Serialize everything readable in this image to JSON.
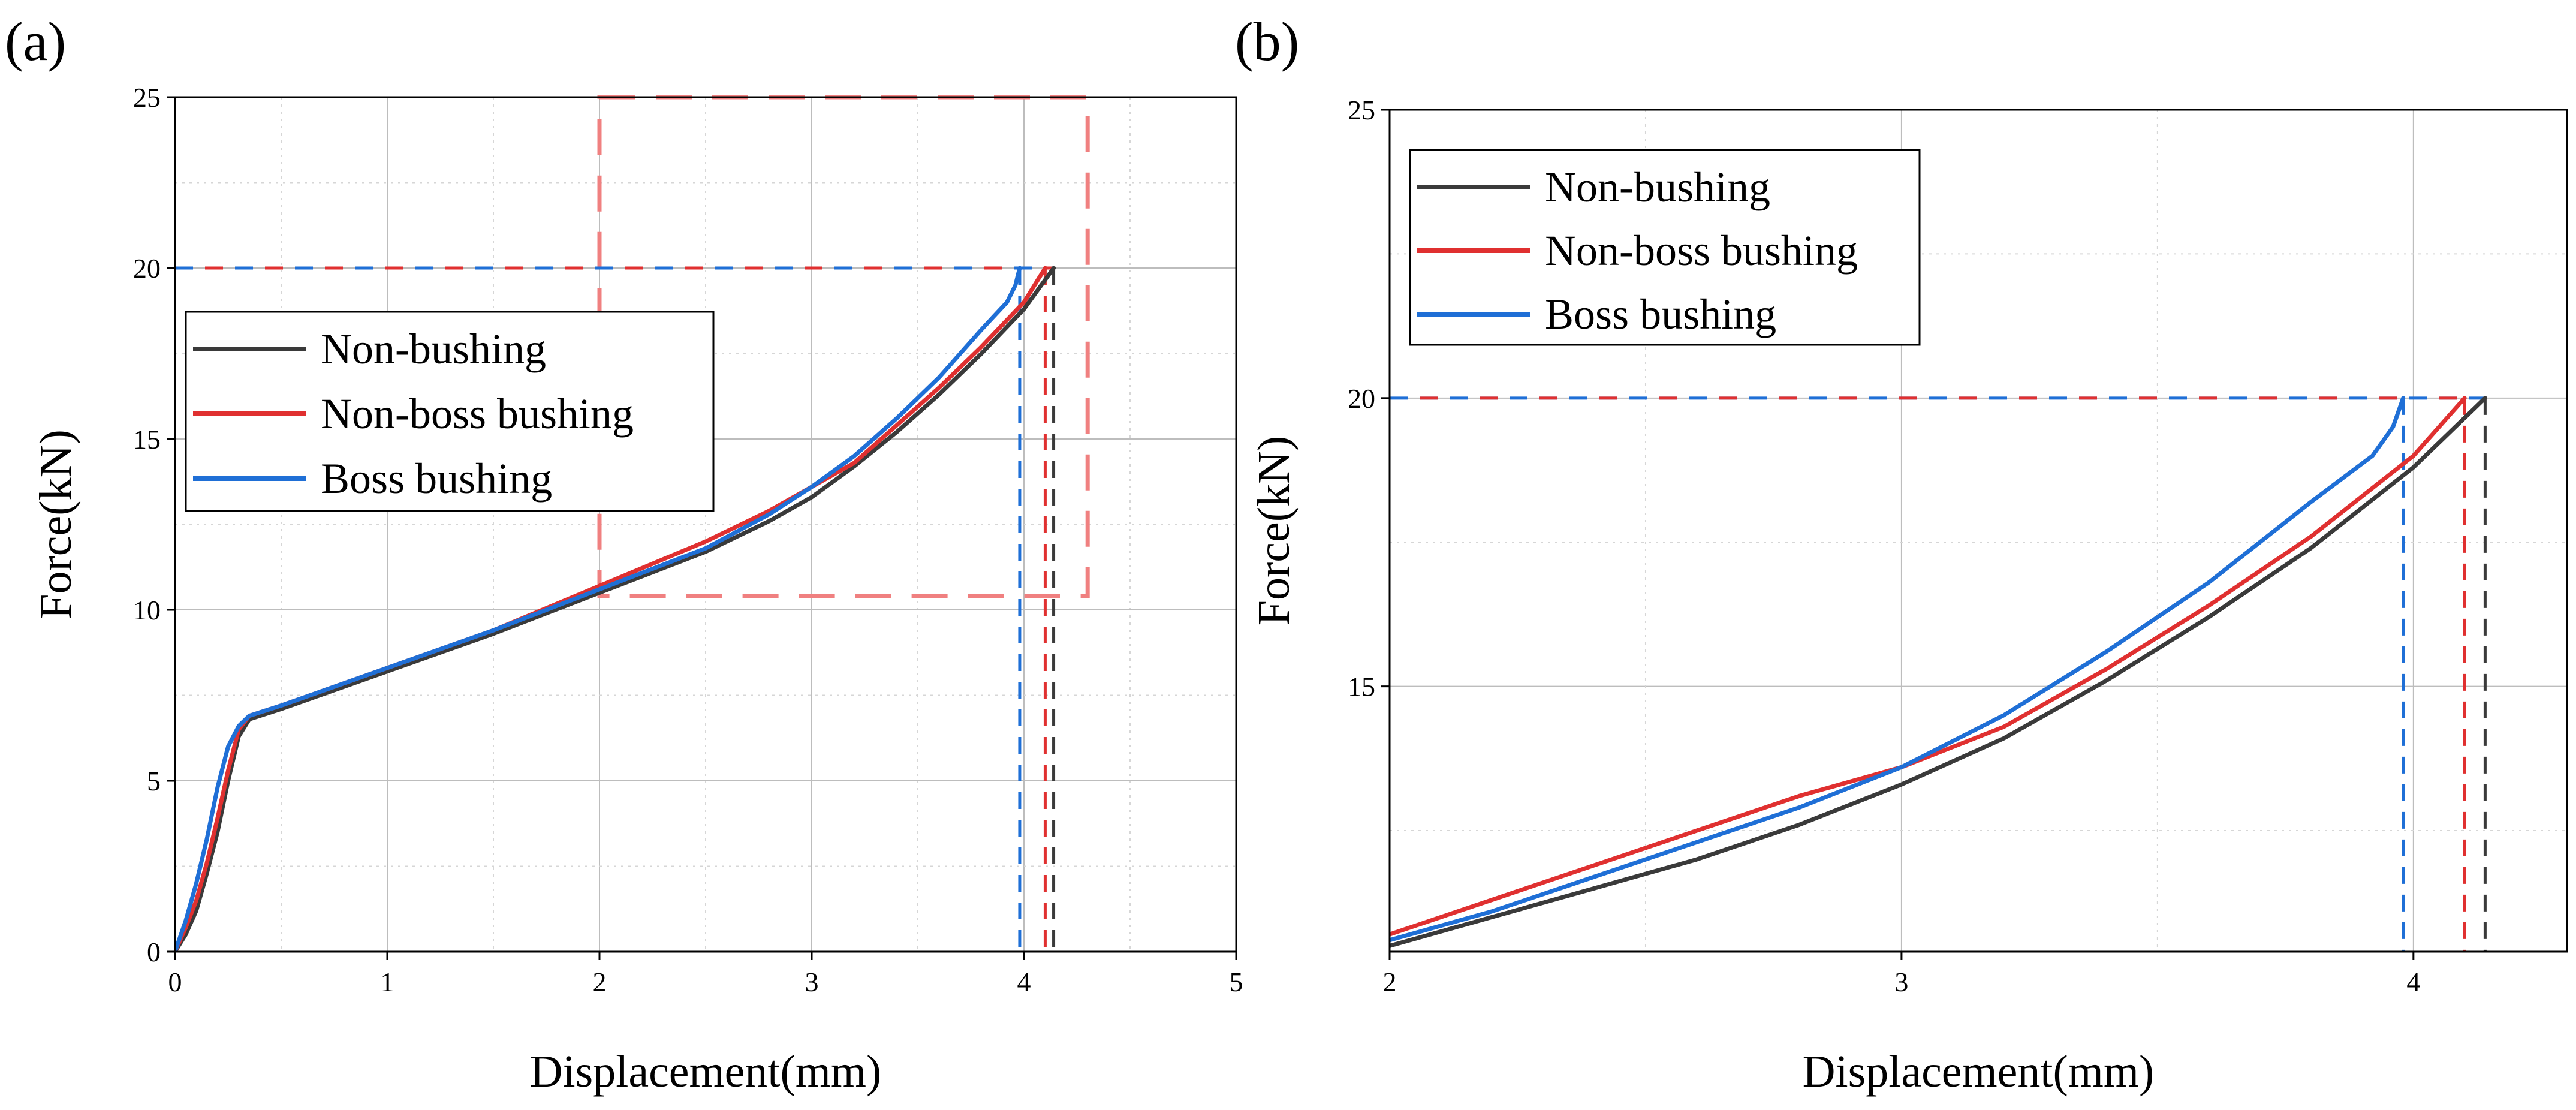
{
  "chart_data": [
    {
      "type": "line",
      "panel_label": "(a)",
      "xlabel": "Displacement(mm)",
      "ylabel": "Force(kN)",
      "xlim": [
        0,
        5
      ],
      "ylim": [
        0,
        25
      ],
      "xticks": [
        "0",
        "1",
        "2",
        "3",
        "4",
        "5"
      ],
      "yticks": [
        "0",
        "5",
        "10",
        "15",
        "20",
        "25"
      ],
      "grid": true,
      "legend_position": "center-left",
      "series": [
        {
          "name": "Non-bushing",
          "color": "#3a3a3a",
          "x": [
            0,
            0.05,
            0.1,
            0.15,
            0.2,
            0.25,
            0.3,
            0.35,
            0.5,
            1.0,
            1.5,
            2.0,
            2.5,
            2.8,
            3.0,
            3.2,
            3.4,
            3.6,
            3.8,
            4.0,
            4.14
          ],
          "y": [
            0,
            0.5,
            1.2,
            2.3,
            3.5,
            5.0,
            6.3,
            6.8,
            7.1,
            8.2,
            9.3,
            10.5,
            11.7,
            12.6,
            13.3,
            14.2,
            15.2,
            16.3,
            17.5,
            18.8,
            20.0
          ]
        },
        {
          "name": "Non-boss bushing",
          "color": "#e03030",
          "x": [
            0,
            0.05,
            0.1,
            0.15,
            0.2,
            0.25,
            0.3,
            0.35,
            0.5,
            1.0,
            1.5,
            2.0,
            2.5,
            2.8,
            3.0,
            3.2,
            3.4,
            3.6,
            3.8,
            4.0,
            4.1
          ],
          "y": [
            0,
            0.7,
            1.5,
            2.6,
            3.9,
            5.3,
            6.5,
            6.9,
            7.2,
            8.3,
            9.4,
            10.7,
            12.0,
            12.9,
            13.6,
            14.3,
            15.4,
            16.5,
            17.7,
            19.0,
            20.0
          ]
        },
        {
          "name": "Boss bushing",
          "color": "#1f6fd6",
          "x": [
            0,
            0.05,
            0.1,
            0.15,
            0.2,
            0.25,
            0.3,
            0.35,
            0.5,
            1.0,
            1.5,
            2.0,
            2.5,
            2.8,
            3.0,
            3.2,
            3.4,
            3.6,
            3.8,
            3.92,
            3.96,
            3.98
          ],
          "y": [
            0,
            0.9,
            2.0,
            3.3,
            4.8,
            6.0,
            6.6,
            6.9,
            7.2,
            8.3,
            9.4,
            10.6,
            11.8,
            12.8,
            13.6,
            14.5,
            15.6,
            16.8,
            18.2,
            19.0,
            19.5,
            20.0
          ]
        }
      ],
      "reference_lines": {
        "hline_y": 20,
        "vlines": [
          {
            "x": 3.98,
            "color": "#1f6fd6"
          },
          {
            "x": 4.1,
            "color": "#e03030"
          },
          {
            "x": 4.14,
            "color": "#3a3a3a"
          }
        ],
        "zoom_box": {
          "x": [
            2.0,
            4.3
          ],
          "y": [
            10.4,
            25
          ],
          "color": "#f08080"
        }
      }
    },
    {
      "type": "line",
      "panel_label": "(b)",
      "xlabel": "Displacement(mm)",
      "ylabel": "Force(kN)",
      "xlim": [
        2,
        4.3
      ],
      "ylim": [
        10.4,
        25
      ],
      "xticks": [
        "2",
        "3",
        "4"
      ],
      "yticks": [
        "15",
        "20",
        "25"
      ],
      "grid": true,
      "legend_position": "top-left",
      "series": [
        {
          "name": "Non-bushing",
          "color": "#3a3a3a",
          "x": [
            2.0,
            2.2,
            2.4,
            2.6,
            2.8,
            3.0,
            3.2,
            3.4,
            3.6,
            3.8,
            4.0,
            4.14
          ],
          "y": [
            10.5,
            11.0,
            11.5,
            12.0,
            12.6,
            13.3,
            14.1,
            15.1,
            16.2,
            17.4,
            18.8,
            20.0
          ]
        },
        {
          "name": "Non-boss bushing",
          "color": "#e03030",
          "x": [
            2.0,
            2.2,
            2.4,
            2.6,
            2.8,
            3.0,
            3.2,
            3.4,
            3.6,
            3.8,
            4.0,
            4.1
          ],
          "y": [
            10.7,
            11.3,
            11.9,
            12.5,
            13.1,
            13.6,
            14.3,
            15.3,
            16.4,
            17.6,
            19.0,
            20.0
          ]
        },
        {
          "name": "Boss bushing",
          "color": "#1f6fd6",
          "x": [
            2.0,
            2.2,
            2.4,
            2.6,
            2.8,
            3.0,
            3.2,
            3.4,
            3.6,
            3.8,
            3.92,
            3.96,
            3.98
          ],
          "y": [
            10.6,
            11.1,
            11.7,
            12.3,
            12.9,
            13.6,
            14.5,
            15.6,
            16.8,
            18.2,
            19.0,
            19.5,
            20.0
          ]
        }
      ],
      "reference_lines": {
        "hline_y": 20,
        "vlines": [
          {
            "x": 3.98,
            "color": "#1f6fd6"
          },
          {
            "x": 4.1,
            "color": "#e03030"
          },
          {
            "x": 4.14,
            "color": "#3a3a3a"
          }
        ]
      }
    }
  ]
}
